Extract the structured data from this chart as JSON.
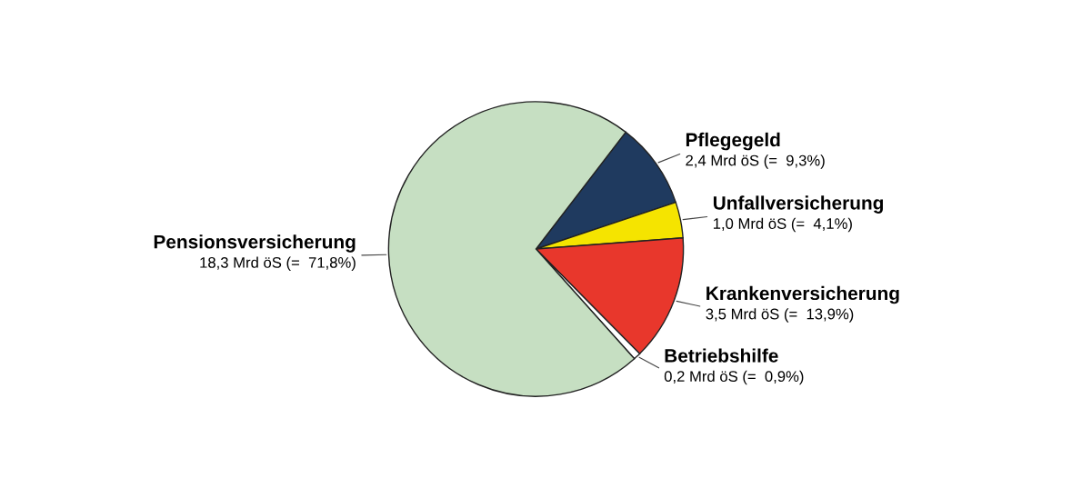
{
  "chart_data": {
    "type": "pie",
    "categories": [
      "Pflegegeld",
      "Unfallversicherung",
      "Krankenversicherung",
      "Betriebshilfe",
      "Pensionsversicherung"
    ],
    "values": [
      2.4,
      1.0,
      3.5,
      0.2,
      18.3
    ],
    "value_labels": [
      "2,4 Mrd öS (=  9,3%)",
      "1,0 Mrd öS (=  4,1%)",
      "3,5 Mrd öS (=  13,9%)",
      "0,2 Mrd öS (=  0,9%)",
      "18,3 Mrd öS (=  71,8%)"
    ],
    "colors": [
      "#1f3a5f",
      "#f5e400",
      "#e8372c",
      "#ffffff",
      "#c6dfc2"
    ],
    "legend": false
  }
}
